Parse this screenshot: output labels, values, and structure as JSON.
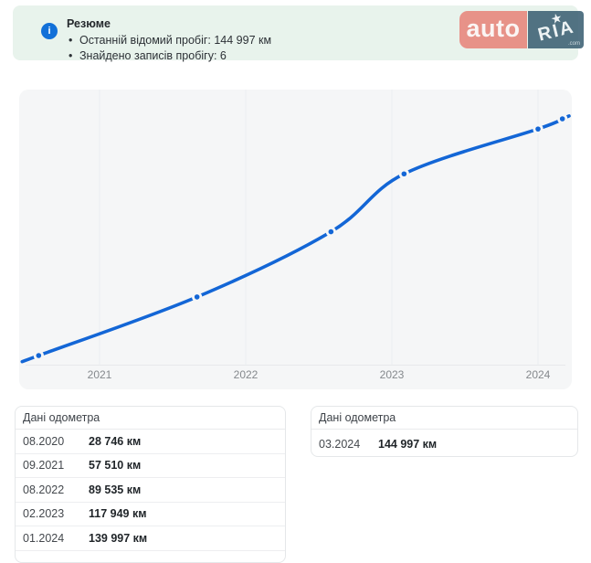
{
  "banner": {
    "title": "Резюме",
    "bullets": [
      "Останній відомий пробіг: 144 997 км",
      "Знайдено записів пробігу: 6"
    ]
  },
  "logo": {
    "auto": "auto",
    "ria": "RIA",
    "com": ".com",
    "star_icon": "star",
    "auto_bg": "#e78a80",
    "ria_bg": "#45687a"
  },
  "chart_data": {
    "type": "line",
    "title": "",
    "records": [
      {
        "date": "08.2020",
        "value": 28746
      },
      {
        "date": "09.2021",
        "value": 57510
      },
      {
        "date": "08.2022",
        "value": 89535
      },
      {
        "date": "02.2023",
        "value": 117949
      },
      {
        "date": "01.2024",
        "value": 139997
      },
      {
        "date": "03.2024",
        "value": 144997
      }
    ],
    "x_ticks": [
      "2021",
      "2022",
      "2023",
      "2024"
    ],
    "ylim": [
      28746,
      144997
    ],
    "xlabel": "",
    "ylabel": "",
    "legend": "none",
    "grid": "vertical year gridlines",
    "line_color": "#1366d6",
    "plot_bg": "#f5f6f7",
    "tick_color": "#85898d"
  },
  "tables": [
    {
      "title": "Дані одометра",
      "rows": [
        {
          "date": "08.2020",
          "value": "28 746 км"
        },
        {
          "date": "09.2021",
          "value": "57 510 км"
        },
        {
          "date": "08.2022",
          "value": "89 535 км"
        },
        {
          "date": "02.2023",
          "value": "117 949 км"
        },
        {
          "date": "01.2024",
          "value": "139 997 км"
        }
      ]
    },
    {
      "title": "Дані одометра",
      "rows": [
        {
          "date": "03.2024",
          "value": "144 997 км"
        }
      ]
    }
  ],
  "colors": {
    "banner_bg": "#e8f3ec",
    "info_icon": "#1270d8",
    "accent_blue": "#1366d6",
    "card_border": "#e5e7e9"
  }
}
